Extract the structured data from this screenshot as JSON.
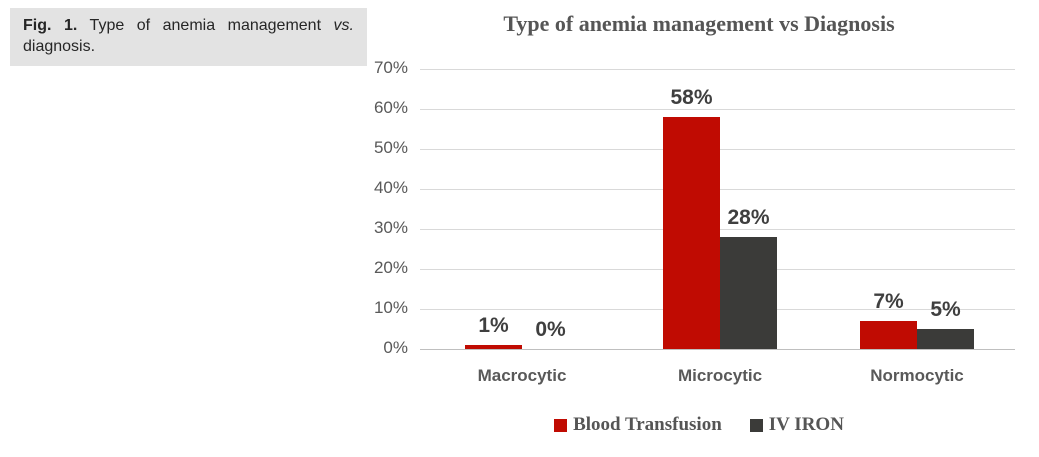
{
  "caption": {
    "fig_label": "Fig. 1.",
    "body": "Type of anemia management",
    "vs": "vs.",
    "tail": "diagnosis."
  },
  "chart_data": {
    "type": "bar",
    "title": "Type of anemia management vs Diagnosis",
    "categories": [
      "Macrocytic",
      "Microcytic",
      "Normocytic"
    ],
    "series": [
      {
        "name": "Blood Transfusion",
        "color": "#c00b02",
        "values": [
          1,
          58,
          7
        ]
      },
      {
        "name": "IV IRON",
        "color": "#3b3b39",
        "values": [
          0,
          28,
          5
        ]
      }
    ],
    "value_suffix": "%",
    "xlabel": "",
    "ylabel": "",
    "ylim": [
      0,
      70
    ],
    "y_tick_step": 10,
    "y_tick_labels": [
      "0%",
      "10%",
      "20%",
      "30%",
      "40%",
      "50%",
      "60%",
      "70%"
    ],
    "grid": true,
    "gridline_color": "#d9d9d9",
    "axis_line_color": "#bfbfbf",
    "tick_label_color": "#595959",
    "data_label_color": "#3f3f3f",
    "legend_position": "bottom"
  }
}
